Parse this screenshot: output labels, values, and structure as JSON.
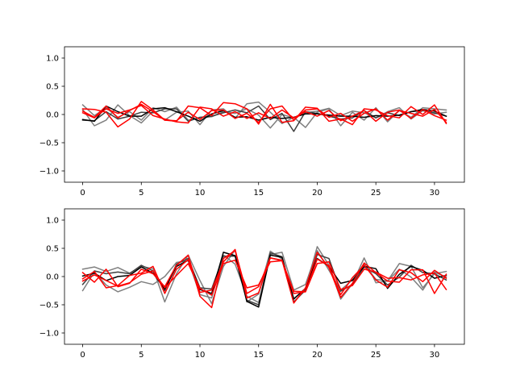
{
  "chart_data": [
    {
      "type": "line",
      "title": "",
      "xlabel": "",
      "ylabel": "",
      "xlim": [
        -1.55,
        32.55
      ],
      "ylim": [
        -1.2,
        1.2
      ],
      "xticks": [
        0,
        5,
        10,
        15,
        20,
        25,
        30
      ],
      "yticks": [
        -1.0,
        -0.5,
        0.0,
        0.5,
        1.0
      ],
      "ytick_labels": [
        "−1.0",
        "−0.5",
        "0.0",
        "0.5",
        "1.0"
      ],
      "grid": false,
      "legend": "none",
      "x": [
        0,
        1,
        2,
        3,
        4,
        5,
        6,
        7,
        8,
        9,
        10,
        11,
        12,
        13,
        14,
        15,
        16,
        17,
        18,
        19,
        20,
        21,
        22,
        23,
        24,
        25,
        26,
        27,
        28,
        29,
        30,
        31
      ],
      "series": [
        {
          "color": "#7f7f7f",
          "values": [
            0.17,
            -0.02,
            0.12,
            -0.05,
            0.05,
            -0.1,
            0.12,
            0.05,
            0.13,
            -0.1,
            -0.06,
            -0.04,
            0.05,
            0.02,
            0.1,
            -0.01,
            -0.24,
            0.0,
            -0.06,
            0.03,
            0.06,
            0.11,
            -0.02,
            0.06,
            0.03,
            -0.06,
            0.05,
            0.12,
            -0.08,
            0.07,
            0.01,
            0.04
          ]
        },
        {
          "color": "#7f7f7f",
          "values": [
            0.09,
            -0.2,
            -0.1,
            0.17,
            -0.02,
            -0.15,
            0.06,
            -0.1,
            0.04,
            0.06,
            -0.18,
            0.08,
            0.1,
            -0.07,
            0.19,
            0.22,
            0.04,
            -0.16,
            -0.05,
            -0.23,
            0.04,
            0.1,
            -0.2,
            0.04,
            -0.1,
            0.12,
            -0.13,
            0.07,
            -0.05,
            0.12,
            0.1,
            0.08
          ]
        },
        {
          "color": "#404040",
          "values": [
            -0.1,
            -0.11,
            0.05,
            -0.08,
            -0.03,
            0.04,
            0.03,
            0.1,
            0.1,
            -0.12,
            -0.05,
            -0.03,
            0.03,
            0.08,
            0.03,
            0.15,
            -0.09,
            0.02,
            -0.3,
            0.05,
            0.02,
            -0.03,
            -0.08,
            -0.06,
            0.07,
            -0.06,
            0.03,
            -0.02,
            0.05,
            0.07,
            0.03,
            -0.03
          ]
        },
        {
          "color": "#000000",
          "values": [
            -0.09,
            -0.12,
            0.15,
            0.05,
            -0.03,
            -0.03,
            0.1,
            0.12,
            0.05,
            -0.03,
            -0.12,
            0.01,
            0.07,
            -0.05,
            -0.04,
            -0.1,
            -0.05,
            -0.07,
            -0.05,
            0.01,
            0.01,
            -0.01,
            -0.03,
            -0.03,
            -0.05,
            -0.02,
            -0.03,
            -0.01,
            0.05,
            0.09,
            0.06,
            -0.03
          ]
        },
        {
          "color": "#ff0000",
          "values": [
            0.1,
            0.09,
            0.04,
            -0.22,
            -0.08,
            0.23,
            0.08,
            -0.1,
            -0.12,
            0.15,
            0.12,
            -0.02,
            0.21,
            0.19,
            0.1,
            -0.17,
            0.18,
            -0.14,
            -0.11,
            0.13,
            0.11,
            -0.12,
            -0.08,
            -0.18,
            0.1,
            0.08,
            -0.02,
            -0.06,
            0.14,
            0.0,
            0.17,
            -0.16
          ]
        },
        {
          "color": "#ff0000",
          "values": [
            0.03,
            -0.06,
            0.1,
            0.02,
            0.08,
            0.16,
            -0.02,
            -0.08,
            -0.13,
            -0.15,
            0.13,
            0.1,
            -0.03,
            0.05,
            -0.07,
            0.03,
            -0.07,
            0.08,
            -0.06,
            0.05,
            -0.03,
            0.07,
            -0.11,
            -0.03,
            0.07,
            -0.12,
            0.04,
            0.08,
            -0.07,
            0.09,
            -0.02,
            -0.1
          ]
        },
        {
          "color": "#ff0000",
          "values": [
            0.06,
            -0.05,
            0.15,
            -0.06,
            0.07,
            0.18,
            0.05,
            -0.1,
            -0.11,
            0.04,
            -0.09,
            0.07,
            0.08,
            -0.07,
            0.02,
            -0.14,
            0.1,
            0.15,
            -0.1,
            0.08,
            0.1,
            -0.05,
            0.02,
            -0.12,
            0.02,
            0.1,
            -0.1,
            0.07,
            0.02,
            -0.03,
            0.09,
            -0.14
          ]
        }
      ]
    },
    {
      "type": "line",
      "title": "",
      "xlabel": "",
      "ylabel": "",
      "xlim": [
        -1.55,
        32.55
      ],
      "ylim": [
        -1.2,
        1.2
      ],
      "xticks": [
        0,
        5,
        10,
        15,
        20,
        25,
        30
      ],
      "yticks": [
        -1.0,
        -0.5,
        0.0,
        0.5,
        1.0
      ],
      "ytick_labels": [
        "−1.0",
        "−0.5",
        "0.0",
        "0.5",
        "1.0"
      ],
      "grid": false,
      "legend": "none",
      "x": [
        0,
        1,
        2,
        3,
        4,
        5,
        6,
        7,
        8,
        9,
        10,
        11,
        12,
        13,
        14,
        15,
        16,
        17,
        18,
        19,
        20,
        21,
        22,
        23,
        24,
        25,
        26,
        27,
        28,
        29,
        30,
        31
      ],
      "series": [
        {
          "color": "#7f7f7f",
          "values": [
            0.13,
            0.17,
            0.09,
            0.16,
            0.06,
            0.18,
            0.14,
            -0.45,
            0.05,
            0.38,
            -0.07,
            -0.48,
            0.18,
            0.47,
            -0.45,
            -0.31,
            0.45,
            0.31,
            -0.39,
            -0.21,
            0.53,
            0.2,
            -0.4,
            -0.13,
            0.33,
            -0.11,
            -0.08,
            0.23,
            0.18,
            -0.2,
            0.05,
            0.09
          ]
        },
        {
          "color": "#7f7f7f",
          "values": [
            -0.25,
            0.08,
            -0.15,
            -0.27,
            -0.19,
            -0.09,
            -0.14,
            0.0,
            0.25,
            0.28,
            -0.32,
            -0.38,
            0.38,
            0.22,
            -0.35,
            -0.46,
            0.39,
            0.43,
            -0.24,
            -0.14,
            0.46,
            0.11,
            -0.24,
            -0.06,
            0.22,
            -0.05,
            -0.08,
            0.13,
            -0.01,
            -0.24,
            0.08,
            -0.01
          ]
        },
        {
          "color": "#404040",
          "values": [
            -0.14,
            0.1,
            0.05,
            0.08,
            0.05,
            0.2,
            0.1,
            -0.25,
            0.22,
            0.32,
            -0.2,
            -0.22,
            0.36,
            0.36,
            -0.42,
            -0.5,
            0.42,
            0.35,
            -0.45,
            -0.24,
            0.39,
            0.32,
            -0.26,
            -0.14,
            0.17,
            0.05,
            -0.15,
            -0.01,
            0.2,
            0.07,
            0.05,
            -0.06
          ]
        },
        {
          "color": "#000000",
          "values": [
            0.01,
            0.06,
            -0.07,
            0.0,
            0.02,
            0.17,
            0.06,
            -0.22,
            0.18,
            0.29,
            -0.23,
            -0.3,
            0.43,
            0.37,
            -0.44,
            -0.54,
            0.38,
            0.34,
            -0.4,
            -0.21,
            0.32,
            0.18,
            -0.12,
            -0.07,
            0.18,
            0.14,
            -0.21,
            0.04,
            0.18,
            0.11,
            -0.03,
            0.02
          ]
        },
        {
          "color": "#ff0000",
          "values": [
            0.07,
            -0.1,
            0.13,
            -0.18,
            -0.12,
            0.13,
            0.05,
            -0.18,
            0.2,
            0.38,
            -0.35,
            -0.55,
            0.32,
            0.46,
            -0.3,
            -0.18,
            0.33,
            0.29,
            -0.47,
            -0.2,
            0.43,
            0.16,
            -0.37,
            -0.12,
            0.24,
            0.07,
            -0.08,
            -0.1,
            0.12,
            0.12,
            -0.3,
            0.04
          ]
        },
        {
          "color": "#ff0000",
          "values": [
            -0.04,
            0.09,
            -0.2,
            -0.16,
            0.02,
            0.06,
            0.18,
            -0.3,
            0.13,
            0.3,
            -0.28,
            -0.24,
            0.26,
            0.48,
            -0.38,
            -0.29,
            0.33,
            0.28,
            -0.26,
            -0.27,
            0.31,
            0.19,
            -0.32,
            -0.02,
            0.2,
            -0.06,
            -0.19,
            0.12,
            0.07,
            -0.09,
            0.11,
            -0.03
          ]
        },
        {
          "color": "#ff0000",
          "values": [
            -0.08,
            0.03,
            -0.07,
            -0.17,
            -0.11,
            0.04,
            0.1,
            -0.2,
            0.02,
            0.23,
            -0.21,
            -0.33,
            0.23,
            0.29,
            -0.2,
            -0.15,
            0.26,
            0.28,
            -0.3,
            -0.27,
            0.23,
            0.26,
            -0.23,
            -0.16,
            0.13,
            0.08,
            -0.03,
            -0.02,
            -0.06,
            0.03,
            0.06,
            -0.23
          ]
        }
      ]
    }
  ]
}
